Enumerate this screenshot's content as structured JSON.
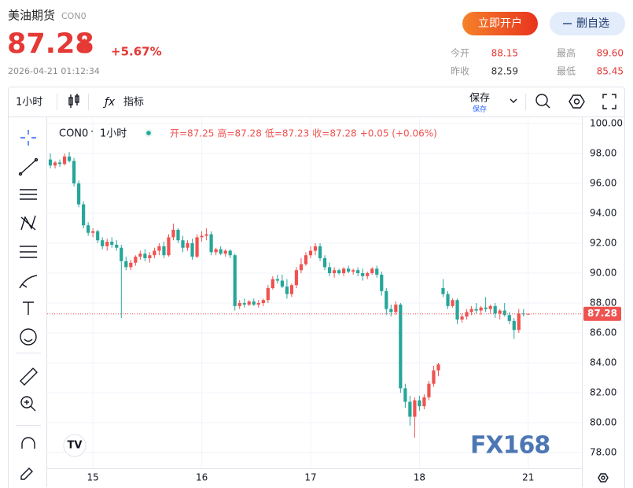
{
  "header": {
    "title": "美油期货",
    "code": "CON0",
    "price": "87.28",
    "change": "+5.67%",
    "timestamp": "2026-04-21 01:12:34",
    "buttons": [
      "立即开户",
      "删自选"
    ],
    "stats": [
      {
        "label": "今开",
        "value": "88.15"
      },
      {
        "label": "最高",
        "value": "89.60"
      },
      {
        "label": "昨收",
        "value": "82.59"
      },
      {
        "label": "最低",
        "value": "85.45"
      }
    ]
  },
  "toolbar": {
    "interval": "1小时",
    "indicators": "指标",
    "save": "保存",
    "save_sub": "保存"
  },
  "chart_data": {
    "type": "candlestick",
    "symbol": "CON0",
    "interval": "1小时",
    "legend": [
      "开=87.25",
      "高=87.28",
      "低=87.23",
      "收=87.28",
      "+0.05 (+0.06%)"
    ],
    "up_color": "#ef5350",
    "down_color": "#26a69a",
    "open": [
      97.6,
      97.2,
      97.4,
      97.3,
      97.8,
      97.5,
      96.0,
      94.6,
      93.2,
      92.7,
      92.8,
      92.2,
      91.8,
      92.1,
      91.9,
      91.7,
      90.8,
      90.4,
      90.7,
      91.1,
      91.3,
      91.0,
      91.2,
      91.5,
      91.8,
      91.2,
      92.4,
      92.9,
      92.2,
      91.7,
      92.0,
      91.1,
      92.4,
      92.5,
      92.6,
      91.4,
      91.6,
      91.3,
      91.5,
      91.2,
      87.8,
      88.0,
      87.9,
      88.1,
      87.9,
      88.0,
      88.2,
      89.0,
      89.6,
      89.5,
      89.1,
      88.6,
      89.2,
      90.2,
      90.6,
      91.2,
      91.5,
      91.8,
      91.0,
      90.4,
      90.0,
      90.2,
      90.0,
      90.3,
      90.1,
      90.2,
      90.0,
      89.8,
      90.0,
      90.3,
      89.9,
      88.8,
      87.6,
      87.4,
      87.9,
      82.3,
      81.4,
      80.4,
      81.5,
      81.1,
      81.7,
      82.6,
      83.5,
      89.0,
      88.6,
      87.8,
      88.2,
      86.9,
      87.1,
      87.4,
      87.6,
      87.5,
      87.7,
      87.6,
      87.8,
      87.3,
      87.5,
      87.2,
      86.8,
      86.2,
      87.3,
      87.25
    ],
    "high": [
      98.0,
      97.5,
      97.6,
      98.0,
      98.1,
      97.7,
      96.2,
      94.8,
      93.4,
      93.0,
      92.9,
      92.4,
      92.3,
      92.4,
      92.2,
      91.9,
      91.1,
      90.9,
      91.2,
      91.5,
      91.6,
      91.4,
      91.7,
      92.0,
      92.1,
      92.6,
      93.3,
      93.0,
      92.5,
      92.2,
      92.3,
      92.6,
      92.8,
      93.0,
      92.8,
      91.7,
      91.8,
      91.6,
      91.6,
      91.3,
      88.2,
      88.3,
      88.2,
      88.3,
      88.2,
      88.3,
      89.2,
      89.8,
      89.9,
      89.9,
      89.6,
      89.3,
      90.4,
      91.0,
      91.4,
      91.8,
      92.0,
      92.0,
      91.2,
      90.7,
      90.4,
      90.3,
      90.4,
      90.5,
      90.3,
      90.4,
      90.3,
      90.1,
      90.4,
      90.5,
      90.1,
      89.0,
      87.9,
      88.1,
      88.0,
      82.6,
      81.8,
      81.7,
      81.8,
      81.9,
      82.8,
      83.8,
      84.0,
      89.6,
      88.8,
      88.3,
      88.3,
      87.3,
      87.6,
      87.8,
      88.0,
      87.8,
      88.4,
      87.9,
      88.0,
      87.6,
      88.0,
      87.4,
      87.0,
      87.6,
      87.6,
      87.28
    ],
    "low": [
      97.0,
      97.0,
      97.1,
      97.2,
      97.4,
      95.8,
      94.4,
      93.0,
      92.5,
      92.4,
      92.0,
      91.6,
      91.5,
      91.7,
      91.5,
      87.0,
      90.2,
      90.2,
      90.5,
      90.9,
      90.8,
      90.7,
      91.0,
      91.2,
      91.0,
      91.1,
      92.2,
      92.0,
      91.4,
      91.5,
      90.9,
      91.0,
      92.1,
      92.2,
      91.2,
      91.2,
      91.2,
      91.1,
      91.0,
      87.5,
      87.6,
      87.7,
      87.8,
      87.8,
      87.7,
      87.8,
      88.0,
      88.9,
      89.3,
      89.0,
      88.3,
      88.4,
      89.0,
      90.0,
      90.5,
      91.0,
      91.2,
      90.8,
      90.2,
      89.8,
      89.7,
      89.9,
      89.8,
      90.0,
      89.9,
      89.8,
      89.5,
      89.6,
      89.9,
      89.7,
      88.5,
      87.2,
      87.1,
      87.2,
      82.0,
      81.0,
      79.8,
      79.0,
      80.8,
      80.9,
      81.5,
      82.4,
      83.1,
      88.4,
      87.6,
      87.7,
      86.6,
      86.7,
      86.9,
      87.2,
      87.3,
      87.2,
      87.4,
      87.3,
      87.0,
      86.9,
      87.1,
      86.6,
      85.6,
      86.0,
      87.1,
      87.23
    ],
    "close": [
      97.2,
      97.4,
      97.3,
      97.8,
      97.5,
      96.0,
      94.6,
      93.2,
      92.7,
      92.8,
      92.2,
      91.8,
      92.1,
      91.9,
      91.7,
      90.8,
      90.4,
      90.7,
      91.1,
      91.3,
      91.0,
      91.2,
      91.5,
      91.8,
      91.2,
      92.4,
      92.9,
      92.2,
      91.7,
      92.0,
      91.1,
      92.4,
      92.5,
      92.6,
      91.4,
      91.6,
      91.3,
      91.5,
      91.2,
      87.8,
      88.0,
      87.9,
      88.1,
      87.9,
      88.0,
      88.2,
      89.0,
      89.6,
      89.5,
      89.1,
      88.6,
      89.2,
      90.2,
      90.6,
      91.2,
      91.5,
      91.8,
      91.0,
      90.4,
      90.0,
      90.2,
      90.0,
      90.3,
      90.1,
      90.2,
      90.0,
      89.8,
      90.0,
      90.3,
      89.9,
      88.8,
      87.6,
      87.4,
      87.9,
      82.3,
      81.4,
      80.4,
      81.5,
      81.1,
      81.7,
      82.6,
      83.5,
      83.9,
      88.6,
      87.8,
      88.2,
      86.9,
      87.1,
      87.4,
      87.6,
      87.5,
      87.7,
      87.6,
      87.8,
      87.3,
      87.5,
      87.2,
      86.8,
      86.2,
      87.3,
      87.25,
      87.28
    ],
    "last_price": 87.28,
    "xlim": [
      -0.667,
      112.33
    ],
    "xticks": [
      {
        "value": 9,
        "label": "15"
      },
      {
        "value": 32,
        "label": "16"
      },
      {
        "value": 55,
        "label": "17"
      },
      {
        "value": 78,
        "label": "18"
      },
      {
        "value": 101,
        "label": "21"
      }
    ],
    "ylim": [
      76.95,
      100.37
    ],
    "yticks": [
      {
        "value": 78,
        "label": "78.00"
      },
      {
        "value": 80,
        "label": "80.00"
      },
      {
        "value": 82,
        "label": "82.00"
      },
      {
        "value": 84,
        "label": "84.00"
      },
      {
        "value": 86,
        "label": "86.00"
      },
      {
        "value": 88,
        "label": "88.00"
      },
      {
        "value": 90,
        "label": "90.00"
      },
      {
        "value": 92,
        "label": "92.00"
      },
      {
        "value": 94,
        "label": "94.00"
      },
      {
        "value": 96,
        "label": "96.00"
      },
      {
        "value": 98,
        "label": "98.00"
      },
      {
        "value": 100,
        "label": "100.00"
      }
    ],
    "grid": true,
    "watermark": "FX168"
  }
}
